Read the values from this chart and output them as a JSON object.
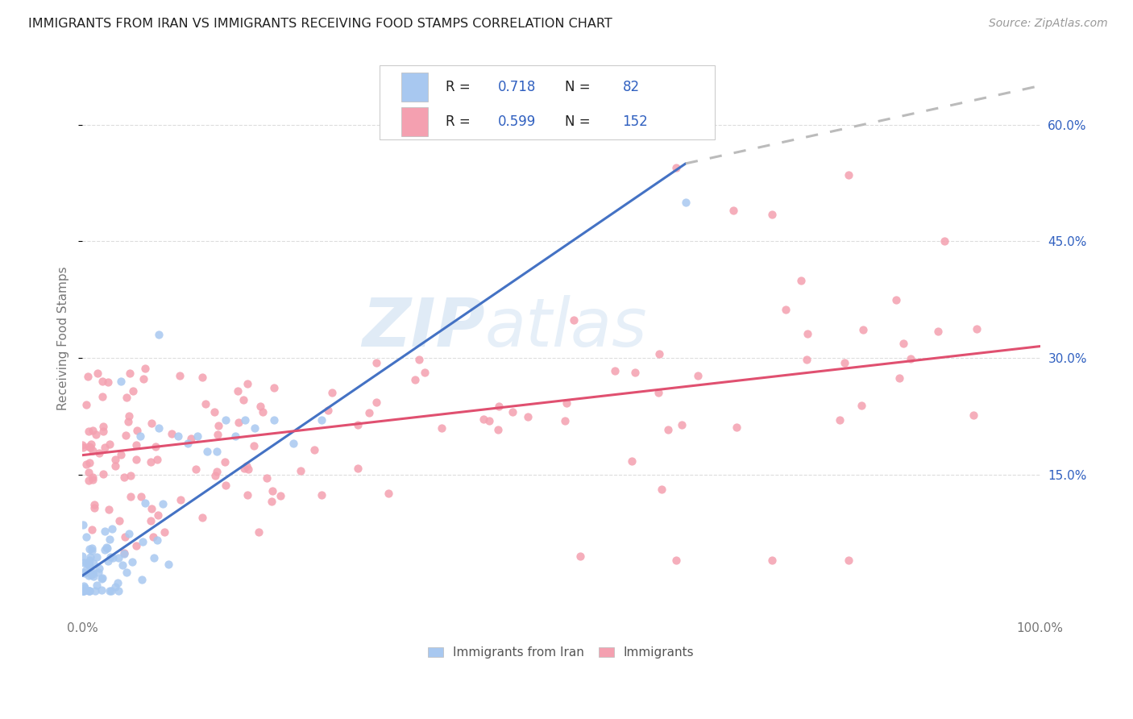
{
  "title": "IMMIGRANTS FROM IRAN VS IMMIGRANTS RECEIVING FOOD STAMPS CORRELATION CHART",
  "source": "Source: ZipAtlas.com",
  "ylabel": "Receiving Food Stamps",
  "xlim": [
    0,
    1.0
  ],
  "ylim": [
    -0.03,
    0.68
  ],
  "blue_R": 0.718,
  "blue_N": 82,
  "pink_R": 0.599,
  "pink_N": 152,
  "blue_color": "#A8C8F0",
  "pink_color": "#F4A0B0",
  "blue_line_color": "#4472C4",
  "pink_line_color": "#E05070",
  "dashed_line_color": "#BBBBBB",
  "watermark_zip": "ZIP",
  "watermark_atlas": "atlas",
  "legend_label_blue": "Immigrants from Iran",
  "legend_label_pink": "Immigrants",
  "background_color": "#FFFFFF",
  "grid_color": "#DDDDDD",
  "title_color": "#222222",
  "stat_label_color": "#3060C0",
  "blue_line": {
    "x0": 0.0,
    "x1": 0.63,
    "y0": 0.02,
    "y1": 0.55
  },
  "pink_line": {
    "x0": 0.0,
    "x1": 1.0,
    "y0": 0.175,
    "y1": 0.315
  },
  "dashed_line": {
    "x0": 0.63,
    "x1": 1.0,
    "y0": 0.55,
    "y1": 0.65
  },
  "yticks": [
    0.15,
    0.3,
    0.45,
    0.6
  ],
  "ytick_labels": [
    "15.0%",
    "30.0%",
    "45.0%",
    "60.0%"
  ],
  "xticks": [
    0.0,
    0.25,
    0.5,
    0.75,
    1.0
  ],
  "xtick_labels": [
    "0.0%",
    "",
    "",
    "",
    "100.0%"
  ]
}
